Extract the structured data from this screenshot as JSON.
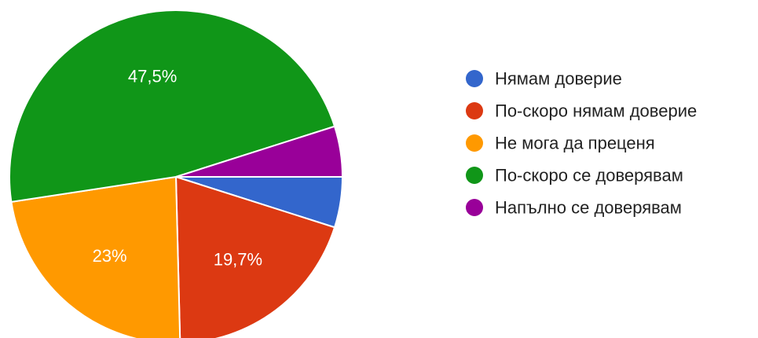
{
  "chart_data": {
    "type": "pie",
    "title": "",
    "legend_position": "right",
    "start_angle_deg": 90,
    "direction": "clockwise",
    "slices": [
      {
        "label": "Нямам доверие",
        "value": 4.9,
        "display": "",
        "color": "#3366cc"
      },
      {
        "label": "По-скоро нямам доверие",
        "value": 19.7,
        "display": "19,7%",
        "color": "#dc3912"
      },
      {
        "label": "Не мога да преценя",
        "value": 23.0,
        "display": "23%",
        "color": "#ff9900"
      },
      {
        "label": "По-скоро се доверявам",
        "value": 47.5,
        "display": "47,5%",
        "color": "#109618"
      },
      {
        "label": "Напълно се доверявам",
        "value": 4.9,
        "display": "",
        "color": "#990099"
      }
    ]
  }
}
